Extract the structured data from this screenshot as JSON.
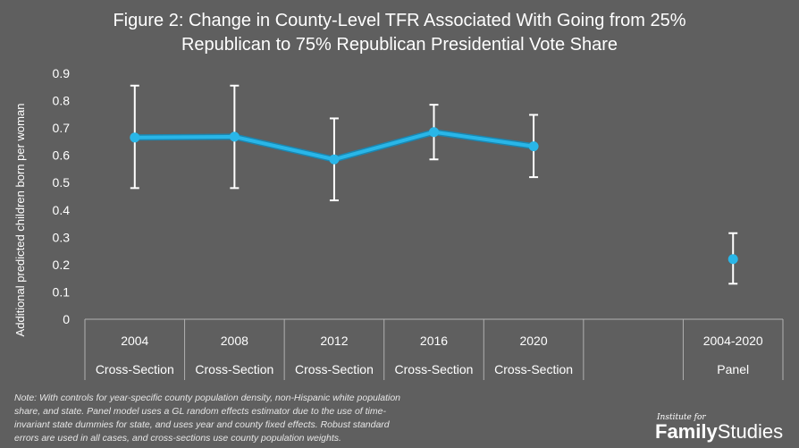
{
  "title_lines": [
    "Figure 2: Change in County-Level TFR Associated With Going from 25%",
    "Republican to 75% Republican Presidential Vote Share"
  ],
  "note_lines": [
    "Note: With controls for year-specific county population density, non-Hispanic white population",
    "share, and state. Panel model uses a GL random effects estimator due to the use of time-",
    "invariant state dummies for state, and uses year and county fixed effects. Robust standard",
    "errors are used in all cases, and cross-sections use county population weights."
  ],
  "logo": {
    "small": "Institute for",
    "bold": "Family",
    "regular": "Studies"
  },
  "colors": {
    "background": "#5f5f5f",
    "line": "#29b6e8",
    "error_bars": "#ffffff",
    "axis": "#b0b0b0"
  },
  "chart_data": {
    "type": "line",
    "title": "Figure 2: Change in County-Level TFR Associated With Going from 25% Republican to 75% Republican Presidential Vote Share",
    "xlabel": "",
    "ylabel": "Additional predicted children born per woman",
    "ylim": [
      0,
      0.9
    ],
    "yticks": [
      "0",
      "0.1",
      "0.2",
      "0.3",
      "0.4",
      "0.5",
      "0.6",
      "0.7",
      "0.8",
      "0.9"
    ],
    "categories": [
      {
        "top": "2004",
        "bottom": "Cross-Section"
      },
      {
        "top": "2008",
        "bottom": "Cross-Section"
      },
      {
        "top": "2012",
        "bottom": "Cross-Section"
      },
      {
        "top": "2016",
        "bottom": "Cross-Section"
      },
      {
        "top": "2020",
        "bottom": "Cross-Section"
      },
      {
        "top": "",
        "bottom": ""
      },
      {
        "top": "2004-2020",
        "bottom": "Panel"
      }
    ],
    "series": [
      {
        "values": [
          0.665,
          0.668,
          0.585,
          0.685,
          0.633,
          null,
          null
        ],
        "lower": [
          0.48,
          0.48,
          0.435,
          0.585,
          0.52,
          null,
          null
        ],
        "upper": [
          0.855,
          0.855,
          0.735,
          0.785,
          0.748,
          null,
          null
        ]
      },
      {
        "values": [
          null,
          null,
          null,
          null,
          null,
          null,
          0.22
        ],
        "lower": [
          null,
          null,
          null,
          null,
          null,
          null,
          0.13
        ],
        "upper": [
          null,
          null,
          null,
          null,
          null,
          null,
          0.315
        ]
      }
    ],
    "grid": false,
    "legend": "none"
  }
}
